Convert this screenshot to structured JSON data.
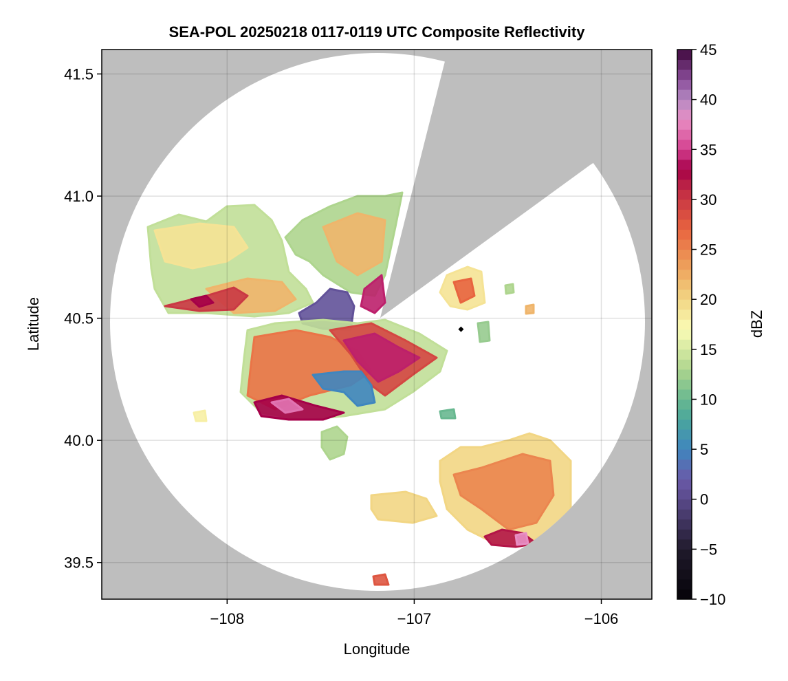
{
  "chart_data": {
    "type": "heatmap",
    "title": "SEA-POL 20250218 0117-0119 UTC Composite Reflectivity",
    "xlabel": "Longitude",
    "ylabel": "Latitude",
    "xlim": [
      -108.67,
      -105.73
    ],
    "ylim": [
      39.35,
      41.6
    ],
    "xticks": [
      -108,
      -107,
      -106
    ],
    "xtick_labels": [
      "−108",
      "−107",
      "−106"
    ],
    "yticks": [
      39.5,
      40.0,
      40.5,
      41.0,
      41.5
    ],
    "ytick_labels": [
      "39.5",
      "40.0",
      "40.5",
      "41.0",
      "41.5"
    ],
    "grid": true,
    "background_color": "#bebebe",
    "coverage_color": "#ffffff",
    "radar_location": {
      "lon": -107.18,
      "lat": 40.5
    },
    "marker": {
      "lon": -106.75,
      "lat": 40.455,
      "shape": "diamond",
      "color": "#000000"
    },
    "colorbar": {
      "label": "dBZ",
      "range": [
        -10,
        45
      ],
      "ticks": [
        -10,
        -5,
        0,
        5,
        10,
        15,
        20,
        25,
        30,
        35,
        40,
        45
      ],
      "tick_labels": [
        "−10",
        "−5",
        "0",
        "5",
        "10",
        "15",
        "20",
        "25",
        "30",
        "35",
        "40",
        "45"
      ],
      "colormap_stops": [
        {
          "dbz": -10,
          "color": "#050308"
        },
        {
          "dbz": -5,
          "color": "#201a2c"
        },
        {
          "dbz": 0,
          "color": "#5a4a8a"
        },
        {
          "dbz": 2,
          "color": "#6a5aa8"
        },
        {
          "dbz": 5,
          "color": "#3f86bf"
        },
        {
          "dbz": 8,
          "color": "#4aa69c"
        },
        {
          "dbz": 10,
          "color": "#68b890"
        },
        {
          "dbz": 13,
          "color": "#aed58e"
        },
        {
          "dbz": 17,
          "color": "#fafcb6"
        },
        {
          "dbz": 20,
          "color": "#f2d684"
        },
        {
          "dbz": 23,
          "color": "#eea55e"
        },
        {
          "dbz": 27,
          "color": "#e8643f"
        },
        {
          "dbz": 31,
          "color": "#c02a45"
        },
        {
          "dbz": 33,
          "color": "#a50048"
        },
        {
          "dbz": 35,
          "color": "#d43f8e"
        },
        {
          "dbz": 38,
          "color": "#e88ec4"
        },
        {
          "dbz": 40,
          "color": "#b58ac2"
        },
        {
          "dbz": 42,
          "color": "#8a4d9a"
        },
        {
          "dbz": 45,
          "color": "#40083e"
        }
      ]
    }
  }
}
